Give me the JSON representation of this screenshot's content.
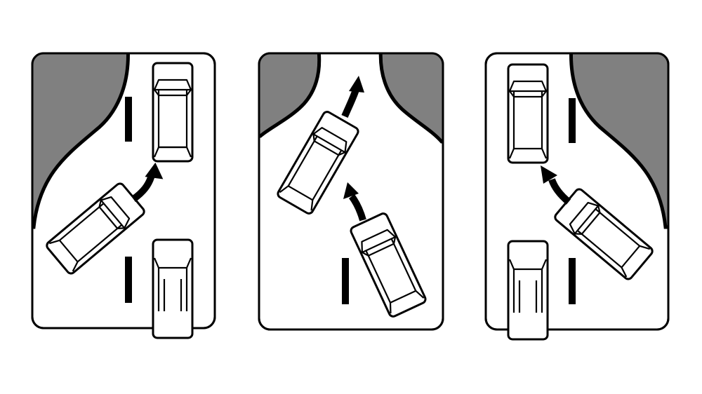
{
  "figure": {
    "panels": [
      {
        "label": "",
        "shoulder": "top-left",
        "maneuver": "merge-left-to-right"
      },
      {
        "label": "",
        "shoulder": "both-sides",
        "maneuver": "forward-lane-narrowing"
      },
      {
        "label": "",
        "shoulder": "top-right",
        "maneuver": "merge-right-to-left"
      }
    ],
    "colors": {
      "shoulder": "#808080",
      "outline": "#000000",
      "road": "#ffffff",
      "background": "#ffffff"
    },
    "icons": [
      "car-icon",
      "direction-arrow-icon",
      "lane-marking"
    ]
  }
}
